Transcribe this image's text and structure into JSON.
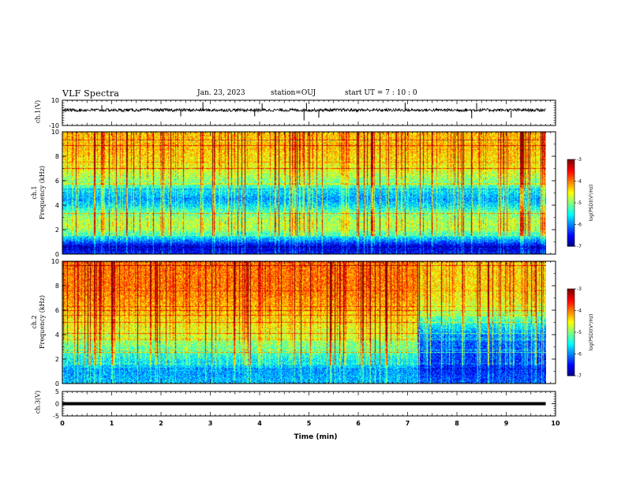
{
  "header": {
    "title": "VLF Spectra",
    "date": "Jan. 23, 2023",
    "station": "station=OUJ",
    "start": "start UT =  7 : 10 : 0"
  },
  "chart_data": [
    {
      "type": "line",
      "name": "ch1-waveform",
      "ylabel": "ch.1(V)",
      "ylim": [
        -10,
        10
      ],
      "yticks": [
        "10",
        "-10"
      ],
      "xlim": [
        0,
        10
      ],
      "level": 0,
      "spike_times": [
        0.8,
        2.4,
        2.85,
        3.9,
        4.05,
        4.9,
        4.95,
        5.2,
        6.95,
        8.3,
        8.4,
        9.1
      ]
    },
    {
      "type": "heatmap",
      "name": "ch1-spectrogram",
      "ylabel": "ch.1\nFrequency (kHz)",
      "ylim": [
        0,
        10
      ],
      "yticks": [
        "0",
        "2",
        "4",
        "6",
        "8",
        "10"
      ],
      "xlim": [
        0,
        9.8
      ],
      "freq_profile_log_psd": [
        {
          "f": 0.2,
          "v": -6.5
        },
        {
          "f": 0.6,
          "v": -6.8
        },
        {
          "f": 1.0,
          "v": -6.2
        },
        {
          "f": 1.5,
          "v": -5.5
        },
        {
          "f": 2.0,
          "v": -4.9
        },
        {
          "f": 2.5,
          "v": -4.8
        },
        {
          "f": 3.0,
          "v": -4.9
        },
        {
          "f": 3.5,
          "v": -5.2
        },
        {
          "f": 4.0,
          "v": -5.6
        },
        {
          "f": 4.5,
          "v": -5.9
        },
        {
          "f": 5.0,
          "v": -5.7
        },
        {
          "f": 6.0,
          "v": -5.0
        },
        {
          "f": 7.0,
          "v": -4.6
        },
        {
          "f": 8.0,
          "v": -4.4
        },
        {
          "f": 9.0,
          "v": -4.3
        },
        {
          "f": 10.0,
          "v": -4.3
        }
      ],
      "colorbar": {
        "label": "log(PSD)(V²/Hz)",
        "range": [
          -7,
          -3
        ],
        "ticks": [
          "-3",
          "-4",
          "-5",
          "-6",
          "-7"
        ]
      }
    },
    {
      "type": "heatmap",
      "name": "ch2-spectrogram",
      "ylabel": "ch.2\nFrequency (kHz)",
      "ylim": [
        0,
        10
      ],
      "yticks": [
        "0",
        "2",
        "4",
        "6",
        "8",
        "10"
      ],
      "xlim": [
        0,
        9.8
      ],
      "regime_change_time": 7.2,
      "freq_profile_log_psd_before": [
        {
          "f": 0.2,
          "v": -5.8
        },
        {
          "f": 1.0,
          "v": -5.9
        },
        {
          "f": 2.0,
          "v": -5.5
        },
        {
          "f": 3.0,
          "v": -5.1
        },
        {
          "f": 4.0,
          "v": -4.7
        },
        {
          "f": 5.0,
          "v": -4.5
        },
        {
          "f": 6.0,
          "v": -4.3
        },
        {
          "f": 7.0,
          "v": -4.1
        },
        {
          "f": 8.0,
          "v": -4.0
        },
        {
          "f": 9.0,
          "v": -4.0
        },
        {
          "f": 10.0,
          "v": -4.0
        }
      ],
      "freq_profile_log_psd_after": [
        {
          "f": 0.2,
          "v": -6.2
        },
        {
          "f": 1.0,
          "v": -6.4
        },
        {
          "f": 2.0,
          "v": -6.3
        },
        {
          "f": 3.0,
          "v": -6.2
        },
        {
          "f": 4.0,
          "v": -6.0
        },
        {
          "f": 5.0,
          "v": -5.4
        },
        {
          "f": 6.0,
          "v": -4.8
        },
        {
          "f": 7.0,
          "v": -4.5
        },
        {
          "f": 8.0,
          "v": -4.4
        },
        {
          "f": 9.0,
          "v": -4.4
        },
        {
          "f": 10.0,
          "v": -4.4
        }
      ],
      "colorbar": {
        "label": "log(PSD)(V²/Hz)",
        "range": [
          -7,
          -3
        ],
        "ticks": [
          "-3",
          "-4",
          "-5",
          "-6",
          "-7"
        ]
      }
    },
    {
      "type": "line",
      "name": "ch3-waveform",
      "ylabel": "ch.3(V)",
      "ylim": [
        -5,
        5
      ],
      "yticks": [
        "5",
        "0",
        "-5"
      ],
      "xlim": [
        0,
        10
      ],
      "level": 0
    }
  ],
  "xaxis": {
    "label": "Time (min)",
    "ticks": [
      "0",
      "1",
      "2",
      "3",
      "4",
      "5",
      "6",
      "7",
      "8",
      "9",
      "10"
    ]
  }
}
